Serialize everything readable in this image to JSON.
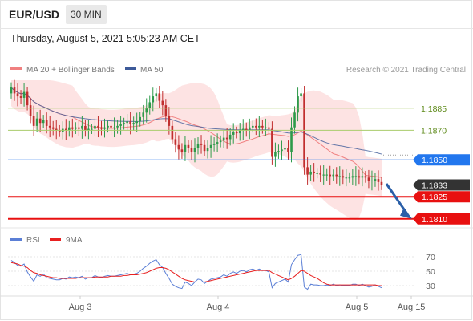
{
  "header": {
    "symbol": "EUR/USD",
    "timeframe": "30 MIN"
  },
  "timestamp": "Thursday, August 5, 2021 5:05:23 AM CET",
  "legend": {
    "ma20_label": "MA 20 + Bollinger Bands",
    "ma50_label": "MA 50",
    "copyright": "Research © 2021 Trading Central",
    "rsi_label": "RSI",
    "ma9_label": "9MA"
  },
  "colors": {
    "up_candle": "#2e9a4a",
    "down_candle": "#c12e2e",
    "ma20": "#f08080",
    "bollinger_fill": "#fddede",
    "ma50": "#3d5a99",
    "resistance_green": "#a9cc6c",
    "blue_level": "#2277ee",
    "red_level": "#e81010",
    "current_price": "#333333",
    "rsi": "#5b7fd6",
    "rsi_ma9": "#e82020",
    "arrow": "#2a5fa8"
  },
  "chart_data": {
    "type": "candlestick",
    "x_ticks": [
      "Aug 3",
      "Aug 4",
      "Aug 5",
      "Aug 15"
    ],
    "y_range": [
      1.1805,
      1.1905
    ],
    "levels": [
      {
        "value": "1.1885",
        "kind": "resistance"
      },
      {
        "value": "1.1870",
        "kind": "resistance"
      },
      {
        "value": "1.1850",
        "kind": "pivot"
      },
      {
        "value": "1.1833",
        "kind": "current"
      },
      {
        "value": "1.1825",
        "kind": "support"
      },
      {
        "value": "1.1810",
        "kind": "support"
      }
    ],
    "forecast": "down",
    "closes": [
      1.1899,
      1.1895,
      1.1893,
      1.1892,
      1.1896,
      1.1887,
      1.188,
      1.1873,
      1.1878,
      1.1875,
      1.1877,
      1.1873,
      1.1872,
      1.1871,
      1.187,
      1.1869,
      1.1871,
      1.187,
      1.1872,
      1.1871,
      1.1872,
      1.1871,
      1.1873,
      1.187,
      1.1871,
      1.1871,
      1.1873,
      1.1872,
      1.1871,
      1.1872,
      1.1873,
      1.1872,
      1.1872,
      1.1873,
      1.1874,
      1.1875,
      1.1876,
      1.1874,
      1.1875,
      1.1876,
      1.1879,
      1.1882,
      1.1885,
      1.1889,
      1.1893,
      1.1895,
      1.189,
      1.1887,
      1.188,
      1.1873,
      1.1864,
      1.186,
      1.1857,
      1.1855,
      1.186,
      1.1858,
      1.1855,
      1.1858,
      1.1861,
      1.186,
      1.1856,
      1.1858,
      1.186,
      1.1861,
      1.1862,
      1.1863,
      1.1865,
      1.1864,
      1.1867,
      1.1869,
      1.1868,
      1.187,
      1.1871,
      1.187,
      1.1872,
      1.1873,
      1.1872,
      1.1873,
      1.1872,
      1.1872,
      1.1871,
      1.1852,
      1.1855,
      1.1856,
      1.1857,
      1.1858,
      1.1855,
      1.1872,
      1.1882,
      1.1893,
      1.1895,
      1.1845,
      1.184,
      1.1842,
      1.1841,
      1.1841,
      1.184,
      1.184,
      1.184,
      1.1839,
      1.184,
      1.1839,
      1.1839,
      1.1838,
      1.1838,
      1.1838,
      1.1839,
      1.1839,
      1.1838,
      1.1839,
      1.1838,
      1.1836,
      1.1836,
      1.1837,
      1.1835,
      1.1833
    ],
    "rsi_ticks": [
      70,
      50,
      30
    ],
    "rsi_range": [
      20,
      80
    ],
    "rsi": [
      65,
      62,
      58,
      57,
      60,
      49,
      42,
      36,
      45,
      43,
      46,
      41,
      40,
      39,
      38,
      38,
      40,
      39,
      42,
      41,
      42,
      41,
      43,
      39,
      41,
      41,
      44,
      42,
      41,
      43,
      44,
      43,
      43,
      44,
      45,
      46,
      47,
      45,
      46,
      47,
      50,
      54,
      57,
      61,
      64,
      66,
      59,
      55,
      47,
      40,
      32,
      29,
      27,
      26,
      35,
      33,
      30,
      35,
      39,
      38,
      33,
      36,
      39,
      40,
      41,
      42,
      45,
      43,
      47,
      49,
      47,
      50,
      51,
      49,
      52,
      53,
      51,
      53,
      51,
      51,
      49,
      27,
      33,
      35,
      37,
      39,
      35,
      59,
      66,
      72,
      73,
      28,
      25,
      32,
      31,
      31,
      30,
      30,
      31,
      30,
      32,
      30,
      31,
      30,
      30,
      30,
      32,
      32,
      30,
      32,
      30,
      28,
      29,
      31,
      29,
      27
    ],
    "rsi_ma9": [
      62,
      61,
      60,
      58,
      57,
      55,
      51,
      48,
      47,
      45,
      44,
      43,
      42,
      41,
      41,
      40,
      40,
      40,
      40,
      40,
      40,
      41,
      41,
      41,
      41,
      41,
      42,
      42,
      42,
      42,
      42,
      43,
      43,
      43,
      43,
      44,
      44,
      45,
      45,
      45,
      46,
      47,
      48,
      50,
      52,
      54,
      55,
      55,
      54,
      52,
      49,
      46,
      43,
      40,
      38,
      37,
      36,
      35,
      35,
      35,
      35,
      36,
      37,
      38,
      39,
      40,
      41,
      42,
      43,
      44,
      45,
      46,
      47,
      48,
      49,
      50,
      51,
      51,
      51,
      51,
      51,
      48,
      46,
      44,
      42,
      40,
      38,
      40,
      43,
      47,
      51,
      50,
      47,
      44,
      42,
      40,
      37,
      34,
      32,
      31,
      31,
      31,
      31,
      31,
      31,
      31,
      31,
      31,
      31,
      31,
      31,
      31,
      31,
      31,
      30,
      30
    ]
  }
}
